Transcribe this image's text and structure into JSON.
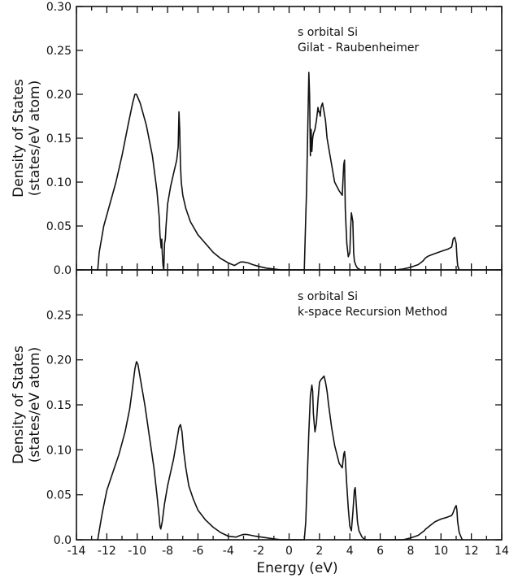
{
  "chart_data": [
    {
      "type": "line",
      "panel": "top",
      "annotations": [
        "s orbital Si",
        "Gilat - Raubenheimer"
      ],
      "ylabel": "Density of States",
      "ylabel_line2": "(states/eV  atom)",
      "xlabel": "",
      "xlim": [
        -14,
        14
      ],
      "ylim": [
        0,
        0.3
      ],
      "yticks": [
        "0.0",
        "0.05",
        "0.10",
        "0.15",
        "0.20",
        "0.25",
        "0.30"
      ],
      "ytick_values": [
        0,
        0.05,
        0.1,
        0.15,
        0.2,
        0.25,
        0.3
      ],
      "xticks": [],
      "series": [
        {
          "x": [
            -12.6,
            -12.5,
            -12.2,
            -11.8,
            -11.4,
            -11.0,
            -10.6,
            -10.3,
            -10.15,
            -10.05,
            -9.8,
            -9.4,
            -9.0,
            -8.7,
            -8.55,
            -8.5,
            -8.45,
            -8.42,
            -8.38,
            -8.35,
            -8.3,
            -8.25,
            -8.22,
            -8.2,
            -8.15,
            -8.1,
            -8.0,
            -7.8,
            -7.6,
            -7.4,
            -7.3,
            -7.25,
            -7.2,
            -7.15,
            -7.1,
            -7.0,
            -6.8,
            -6.5,
            -6.0,
            -5.5,
            -5.0,
            -4.5,
            -4.0,
            -3.6,
            -3.2,
            -3.0,
            -2.7,
            -2.4,
            -2.0,
            -1.5,
            -1.0,
            -0.5,
            0.0,
            0.4,
            0.8,
            1.0,
            1.05,
            1.1,
            1.15,
            1.3,
            1.35,
            1.4,
            1.45,
            1.5,
            1.55,
            1.6,
            1.7,
            1.8,
            1.9,
            1.95,
            2.0,
            2.05,
            2.1,
            2.2,
            2.3,
            2.4,
            2.5,
            2.7,
            3.0,
            3.3,
            3.5,
            3.6,
            3.65,
            3.7,
            3.75,
            3.8,
            3.9,
            4.0,
            4.05,
            4.1,
            4.2,
            4.25,
            4.3,
            4.4,
            4.5,
            4.7,
            5.0,
            5.5,
            6.0,
            6.5,
            7.0,
            7.5,
            8.0,
            8.5,
            8.8,
            9.0,
            9.2,
            9.5,
            10.0,
            10.5,
            10.7,
            10.75,
            10.8,
            10.9,
            11.0,
            11.05,
            11.1,
            11.2
          ],
          "y": [
            0.0,
            0.02,
            0.05,
            0.075,
            0.1,
            0.13,
            0.165,
            0.19,
            0.2,
            0.2,
            0.19,
            0.165,
            0.13,
            0.09,
            0.06,
            0.04,
            0.03,
            0.025,
            0.035,
            0.02,
            0.005,
            0.0,
            0.02,
            0.03,
            0.035,
            0.05,
            0.075,
            0.095,
            0.11,
            0.125,
            0.14,
            0.18,
            0.16,
            0.12,
            0.1,
            0.085,
            0.07,
            0.055,
            0.04,
            0.03,
            0.02,
            0.013,
            0.008,
            0.005,
            0.009,
            0.009,
            0.008,
            0.006,
            0.004,
            0.002,
            0.001,
            0.0,
            0.0,
            0.0,
            0.0,
            0.0,
            0.03,
            0.06,
            0.09,
            0.225,
            0.2,
            0.13,
            0.16,
            0.135,
            0.15,
            0.155,
            0.16,
            0.17,
            0.185,
            0.18,
            0.18,
            0.175,
            0.185,
            0.19,
            0.18,
            0.17,
            0.15,
            0.13,
            0.1,
            0.09,
            0.085,
            0.12,
            0.125,
            0.07,
            0.05,
            0.03,
            0.015,
            0.02,
            0.045,
            0.065,
            0.055,
            0.02,
            0.01,
            0.005,
            0.002,
            0.0,
            0.0,
            0.0,
            0.0,
            0.0,
            0.0,
            0.001,
            0.003,
            0.006,
            0.01,
            0.014,
            0.016,
            0.018,
            0.021,
            0.024,
            0.026,
            0.03,
            0.035,
            0.037,
            0.03,
            0.015,
            0.005,
            0.0
          ]
        }
      ]
    },
    {
      "type": "line",
      "panel": "bottom",
      "annotations": [
        "s orbital Si",
        "k-space Recursion Method"
      ],
      "ylabel": "Density of States",
      "ylabel_line2": "(states/eV  atom)",
      "xlabel": "Energy (eV)",
      "xlim": [
        -14,
        14
      ],
      "ylim": [
        0,
        0.3
      ],
      "yticks": [
        "0.0",
        "0.05",
        "0.10",
        "0.15",
        "0.20",
        "0.25"
      ],
      "ytick_values": [
        0,
        0.05,
        0.1,
        0.15,
        0.2,
        0.25
      ],
      "xticks": [
        "-14",
        "-12",
        "-10",
        "-8",
        "-6",
        "-4",
        "-2",
        "0",
        "2",
        "4",
        "6",
        "8",
        "10",
        "12",
        "14"
      ],
      "xtick_values": [
        -14,
        -12,
        -10,
        -8,
        -6,
        -4,
        -2,
        0,
        2,
        4,
        6,
        8,
        10,
        12,
        14
      ],
      "series": [
        {
          "x": [
            -12.6,
            -12.5,
            -12.3,
            -12.0,
            -11.6,
            -11.2,
            -10.8,
            -10.5,
            -10.3,
            -10.15,
            -10.05,
            -9.95,
            -9.8,
            -9.5,
            -9.2,
            -8.9,
            -8.7,
            -8.55,
            -8.5,
            -8.45,
            -8.35,
            -8.2,
            -8.0,
            -7.8,
            -7.6,
            -7.4,
            -7.25,
            -7.15,
            -7.05,
            -6.95,
            -6.8,
            -6.6,
            -6.3,
            -6.0,
            -5.5,
            -5.0,
            -4.5,
            -4.0,
            -3.5,
            -3.2,
            -3.0,
            -2.8,
            -2.5,
            -2.2,
            -1.8,
            -1.4,
            -1.0,
            -0.5,
            0.0,
            0.5,
            0.8,
            1.0,
            1.1,
            1.2,
            1.3,
            1.4,
            1.5,
            1.55,
            1.6,
            1.7,
            1.8,
            1.9,
            2.0,
            2.1,
            2.2,
            2.3,
            2.4,
            2.5,
            2.6,
            2.8,
            3.0,
            3.3,
            3.5,
            3.6,
            3.65,
            3.7,
            3.8,
            3.9,
            4.0,
            4.1,
            4.2,
            4.3,
            4.35,
            4.4,
            4.5,
            4.6,
            4.8,
            5.0,
            5.5,
            6.0,
            6.5,
            7.0,
            7.5,
            8.0,
            8.5,
            8.9,
            9.0,
            9.3,
            9.6,
            10.0,
            10.4,
            10.7,
            10.8,
            10.9,
            11.0,
            11.05,
            11.1,
            11.2,
            11.4
          ],
          "y": [
            0.0,
            0.01,
            0.03,
            0.055,
            0.075,
            0.095,
            0.12,
            0.145,
            0.17,
            0.19,
            0.198,
            0.195,
            0.18,
            0.15,
            0.115,
            0.08,
            0.05,
            0.025,
            0.015,
            0.012,
            0.02,
            0.04,
            0.06,
            0.075,
            0.09,
            0.11,
            0.125,
            0.128,
            0.12,
            0.1,
            0.08,
            0.06,
            0.045,
            0.033,
            0.022,
            0.014,
            0.008,
            0.004,
            0.003,
            0.005,
            0.006,
            0.006,
            0.005,
            0.004,
            0.003,
            0.002,
            0.001,
            0.0,
            0.0,
            0.0,
            0.0,
            0.0,
            0.02,
            0.07,
            0.12,
            0.16,
            0.172,
            0.165,
            0.14,
            0.12,
            0.13,
            0.155,
            0.175,
            0.178,
            0.18,
            0.182,
            0.175,
            0.165,
            0.15,
            0.125,
            0.105,
            0.085,
            0.08,
            0.095,
            0.098,
            0.09,
            0.06,
            0.035,
            0.015,
            0.01,
            0.03,
            0.055,
            0.058,
            0.045,
            0.02,
            0.01,
            0.003,
            0.0,
            0.0,
            0.0,
            0.0,
            0.0,
            0.0,
            0.002,
            0.005,
            0.01,
            0.012,
            0.016,
            0.02,
            0.023,
            0.025,
            0.027,
            0.03,
            0.035,
            0.038,
            0.033,
            0.02,
            0.008,
            0.0
          ]
        }
      ]
    }
  ],
  "colors": {
    "background": "#ffffff",
    "ink": "#111111"
  }
}
